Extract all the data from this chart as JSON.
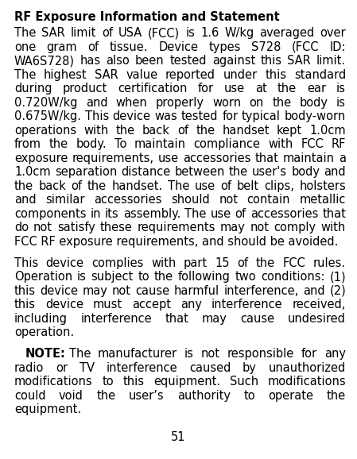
{
  "title": "RF Exposure Information and Statement",
  "paragraph1": "The SAR limit of USA (FCC) is 1.6 W/kg averaged over one gram of tissue. Device types S728 (FCC ID: WA6S728) has also been tested against this SAR limit. The highest SAR value reported under this standard during product certification for use at the ear is 0.720W/kg and when properly worn on the body is 0.675W/kg. This device was tested for typical body-worn operations with the back of the handset kept 1.0cm from the body. To maintain compliance with FCC RF exposure requirements, use accessories that maintain a 1.0cm separation distance between the user's body and the back of the handset. The use of belt clips, holsters and similar accessories should not contain metallic components in its assembly. The use of accessories that do not satisfy these requirements may not comply with FCC RF exposure requirements, and should be avoided.",
  "paragraph2": "This device complies with part 15 of the FCC rules. Operation is subject to the following two conditions: (1) this device may not cause harmful interference, and (2) this device must accept any interference received, including interference that may cause undesired operation.",
  "note_bold": "NOTE:",
  "note_text": " The manufacturer is not responsible for any radio or TV interference caused by unauthorized modifications to this equipment. Such modifications could void the user’s authority to operate the equipment.",
  "page_number": "51",
  "background_color": "#ffffff",
  "text_color": "#000000",
  "title_fontsize": 10.5,
  "body_fontsize": 10.5,
  "font_family": "DejaVu Sans"
}
